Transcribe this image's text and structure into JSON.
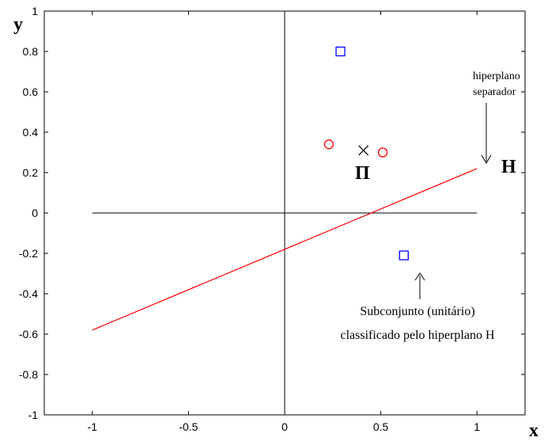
{
  "chart_data": {
    "type": "scatter",
    "xlabel": "x",
    "ylabel": "y",
    "xlim": [
      -1.25,
      1.25
    ],
    "ylim": [
      -1,
      1
    ],
    "x_ticks": [
      -1,
      -0.5,
      0,
      0.5,
      1
    ],
    "x_tick_labels": [
      "-1",
      "-0.5",
      "0",
      "0.5",
      "1"
    ],
    "y_ticks": [
      -1,
      -0.8,
      -0.6,
      -0.4,
      -0.2,
      0,
      0.2,
      0.4,
      0.6,
      0.8,
      1
    ],
    "y_tick_labels": [
      "-1",
      "-0.8",
      "-0.6",
      "-0.4",
      "-0.2",
      "0",
      "0.2",
      "0.4",
      "0.6",
      "0.8",
      "1"
    ],
    "grid": false,
    "colors": {
      "line": "#ff0000",
      "circle": "#ff0000",
      "square": "#0000ff",
      "cross": "#000000",
      "axes": "#000000"
    },
    "series": [
      {
        "marker": "square",
        "color": "#0000ff",
        "points": [
          [
            0.29,
            0.8
          ],
          [
            0.62,
            -0.21
          ]
        ]
      },
      {
        "marker": "circle",
        "color": "#ff0000",
        "points": [
          [
            0.23,
            0.34
          ],
          [
            0.51,
            0.3
          ]
        ]
      },
      {
        "marker": "cross",
        "color": "#000000",
        "points": [
          [
            0.41,
            0.31
          ]
        ]
      }
    ],
    "lines": [
      {
        "label": "H",
        "color": "#ff0000",
        "points": [
          [
            -1,
            -0.58
          ],
          [
            1,
            0.22
          ]
        ]
      }
    ],
    "reference_lines": [
      {
        "orientation": "horizontal",
        "value": 0,
        "from": -1,
        "to": 1
      },
      {
        "orientation": "vertical",
        "value": 0,
        "from": -1,
        "to": 1
      }
    ],
    "annotations": {
      "hyperplane_label": "H",
      "pi_label": "Π",
      "hyperplane_note": [
        "hiperplano",
        "separador"
      ],
      "subset_note": [
        "Subconjunto (unitário)",
        "classificado pelo hiperplano H"
      ]
    }
  }
}
